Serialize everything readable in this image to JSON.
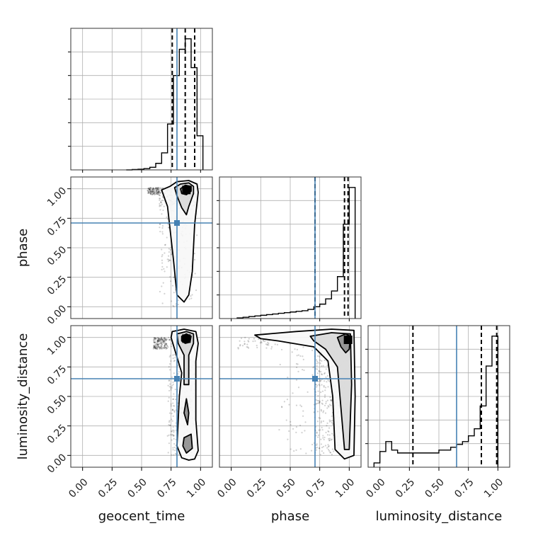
{
  "chart_data": {
    "type": "corner",
    "parameters": [
      "geocent_time",
      "phase",
      "luminosity_distance"
    ],
    "axis_labels": {
      "x": [
        "geocent_time",
        "phase",
        "luminosity_distance"
      ],
      "y": [
        "phase",
        "luminosity_distance"
      ]
    },
    "ticks": [
      0.0,
      0.25,
      0.5,
      0.75,
      1.0
    ],
    "tick_labels": [
      "0.00",
      "0.25",
      "0.50",
      "0.75",
      "1.00"
    ],
    "ranges": [
      [
        -0.1,
        1.1
      ],
      [
        -0.1,
        1.1
      ],
      [
        -0.1,
        1.1
      ]
    ],
    "truths": [
      0.8,
      0.71,
      0.65
    ],
    "truth_color": "#4682b4",
    "quantiles": [
      [
        0.76,
        0.87,
        0.95
      ],
      [
        0.71,
        0.96,
        0.99
      ],
      [
        0.28,
        0.86,
        0.99
      ]
    ],
    "histograms": [
      {
        "parameter": "geocent_time",
        "bin_edges": [
          0.37,
          0.42,
          0.47,
          0.52,
          0.57,
          0.62,
          0.67,
          0.72,
          0.77,
          0.82,
          0.87,
          0.92,
          0.97,
          1.02
        ],
        "counts": [
          0.0,
          0.003,
          0.005,
          0.01,
          0.02,
          0.05,
          0.13,
          0.35,
          0.72,
          0.92,
          1.0,
          0.78,
          0.26
        ]
      },
      {
        "parameter": "phase",
        "bin_edges": [
          0.05,
          0.1,
          0.15,
          0.2,
          0.25,
          0.3,
          0.35,
          0.4,
          0.45,
          0.5,
          0.55,
          0.6,
          0.65,
          0.7,
          0.75,
          0.8,
          0.85,
          0.9,
          0.95,
          1.0,
          1.05
        ],
        "counts": [
          0.005,
          0.01,
          0.015,
          0.02,
          0.025,
          0.03,
          0.035,
          0.04,
          0.045,
          0.05,
          0.055,
          0.06,
          0.07,
          0.09,
          0.11,
          0.15,
          0.21,
          0.32,
          0.72,
          1.0
        ]
      },
      {
        "parameter": "luminosity_distance",
        "bin_edges": [
          -0.05,
          0.0,
          0.05,
          0.1,
          0.15,
          0.2,
          0.25,
          0.3,
          0.35,
          0.4,
          0.45,
          0.5,
          0.55,
          0.6,
          0.65,
          0.7,
          0.75,
          0.8,
          0.85,
          0.9,
          0.95,
          1.0
        ],
        "counts": [
          0.03,
          0.11,
          0.18,
          0.12,
          0.1,
          0.1,
          0.1,
          0.1,
          0.1,
          0.1,
          0.1,
          0.12,
          0.12,
          0.14,
          0.16,
          0.18,
          0.22,
          0.27,
          0.43,
          0.71,
          0.92
        ]
      }
    ],
    "density_2d": [
      {
        "x_param": "geocent_time",
        "y_param": "phase",
        "peak": [
          0.88,
          0.99
        ],
        "contours": [
          [
            [
              0.74,
              1.02
            ],
            [
              0.8,
              1.06
            ],
            [
              0.9,
              1.07
            ],
            [
              0.97,
              1.04
            ],
            [
              0.98,
              0.97
            ],
            [
              0.95,
              0.7
            ],
            [
              0.93,
              0.3
            ],
            [
              0.9,
              0.1
            ],
            [
              0.86,
              0.04
            ],
            [
              0.8,
              0.1
            ],
            [
              0.77,
              0.4
            ],
            [
              0.72,
              0.85
            ],
            [
              0.67,
              0.99
            ]
          ],
          [
            [
              0.78,
              1.01
            ],
            [
              0.83,
              1.04
            ],
            [
              0.9,
              1.05
            ],
            [
              0.94,
              1.02
            ],
            [
              0.94,
              0.96
            ],
            [
              0.9,
              0.85
            ],
            [
              0.88,
              0.78
            ],
            [
              0.84,
              0.84
            ],
            [
              0.8,
              0.94
            ]
          ],
          [
            [
              0.83,
              1.0
            ],
            [
              0.87,
              1.03
            ],
            [
              0.92,
              1.02
            ],
            [
              0.92,
              0.98
            ],
            [
              0.88,
              0.95
            ],
            [
              0.84,
              0.96
            ]
          ]
        ]
      },
      {
        "x_param": "geocent_time",
        "y_param": "luminosity_distance",
        "peak": [
          0.88,
          0.99
        ],
        "contours": [
          [
            [
              0.76,
              1.05
            ],
            [
              0.86,
              1.07
            ],
            [
              0.96,
              1.05
            ],
            [
              0.98,
              0.95
            ],
            [
              0.96,
              0.8
            ],
            [
              0.96,
              0.3
            ],
            [
              0.98,
              0.04
            ],
            [
              0.95,
              -0.03
            ],
            [
              0.9,
              -0.04
            ],
            [
              0.84,
              -0.02
            ],
            [
              0.8,
              0.08
            ],
            [
              0.82,
              0.5
            ],
            [
              0.84,
              0.7
            ],
            [
              0.78,
              0.9
            ],
            [
              0.75,
              1.0
            ]
          ],
          [
            [
              0.8,
              1.03
            ],
            [
              0.88,
              1.05
            ],
            [
              0.94,
              1.03
            ],
            [
              0.94,
              0.95
            ],
            [
              0.9,
              0.85
            ],
            [
              0.9,
              0.6
            ],
            [
              0.86,
              0.6
            ],
            [
              0.86,
              0.85
            ],
            [
              0.81,
              0.95
            ]
          ],
          [
            [
              0.84,
              1.01
            ],
            [
              0.88,
              1.03
            ],
            [
              0.92,
              1.01
            ],
            [
              0.91,
              0.96
            ],
            [
              0.87,
              0.95
            ],
            [
              0.84,
              0.97
            ]
          ],
          [
            [
              0.88,
              0.48
            ],
            [
              0.9,
              0.36
            ],
            [
              0.89,
              0.26
            ],
            [
              0.86,
              0.36
            ]
          ],
          [
            [
              0.86,
              0.15
            ],
            [
              0.92,
              0.18
            ],
            [
              0.93,
              0.06
            ],
            [
              0.88,
              0.02
            ],
            [
              0.85,
              0.08
            ]
          ]
        ]
      },
      {
        "x_param": "phase",
        "y_param": "luminosity_distance",
        "peak": [
          0.99,
          0.98
        ],
        "contours": [
          [
            [
              0.2,
              1.02
            ],
            [
              0.55,
              1.05
            ],
            [
              0.85,
              1.07
            ],
            [
              1.04,
              1.06
            ],
            [
              1.05,
              0.5
            ],
            [
              1.04,
              0.0
            ],
            [
              0.96,
              -0.03
            ],
            [
              0.88,
              0.05
            ],
            [
              0.86,
              0.5
            ],
            [
              0.82,
              0.8
            ],
            [
              0.7,
              0.92
            ],
            [
              0.4,
              0.97
            ],
            [
              0.25,
              0.99
            ]
          ],
          [
            [
              0.67,
              1.01
            ],
            [
              0.85,
              1.04
            ],
            [
              1.01,
              1.03
            ],
            [
              1.02,
              0.6
            ],
            [
              1.0,
              0.05
            ],
            [
              0.96,
              0.05
            ],
            [
              0.93,
              0.4
            ],
            [
              0.9,
              0.75
            ],
            [
              0.8,
              0.9
            ],
            [
              0.7,
              0.97
            ]
          ],
          [
            [
              0.9,
              1.0
            ],
            [
              0.97,
              1.03
            ],
            [
              1.01,
              1.01
            ],
            [
              1.0,
              0.9
            ],
            [
              0.97,
              0.87
            ],
            [
              0.93,
              0.92
            ]
          ]
        ]
      }
    ]
  }
}
